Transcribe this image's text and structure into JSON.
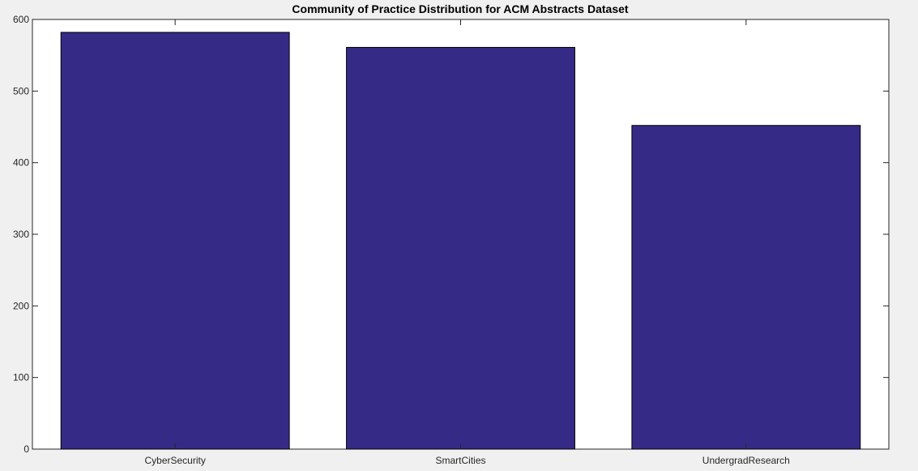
{
  "chart_data": {
    "type": "bar",
    "title": "Community of Practice Distribution for ACM Abstracts Dataset",
    "xlabel": "",
    "ylabel": "",
    "categories": [
      "CyberSecurity",
      "SmartCities",
      "UndergradResearch"
    ],
    "values": [
      582,
      561,
      452
    ],
    "ylim": [
      0,
      600
    ],
    "yticks": [
      0,
      100,
      200,
      300,
      400,
      500,
      600
    ],
    "grid": false,
    "legend": "none",
    "colors": {
      "bar_fill": "#362a87",
      "bar_edge": "#000000",
      "axes_background": "#ffffff",
      "figure_background": "#f0f0f0",
      "axis_color": "#262626"
    }
  }
}
